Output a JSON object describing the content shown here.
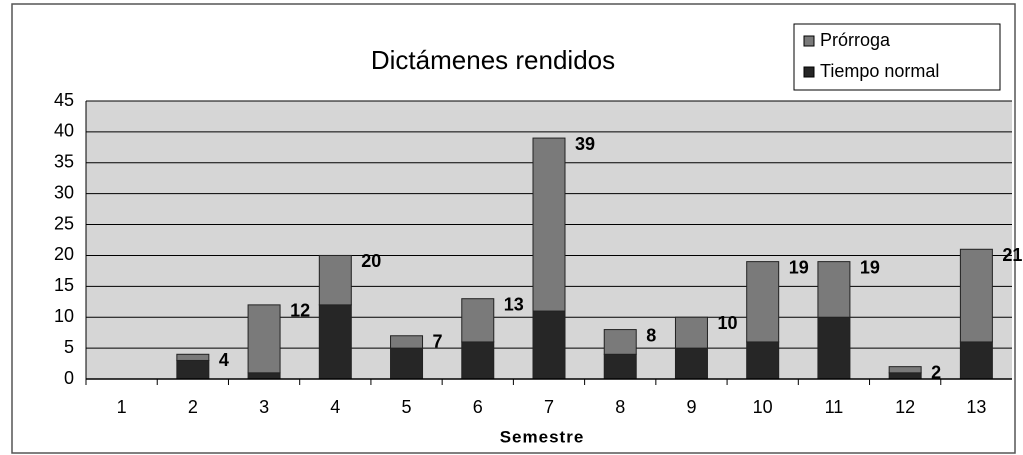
{
  "chart_data": {
    "type": "stacked_bar",
    "title": "Dictámenes rendidos",
    "xlabel": "Semestre",
    "categories": [
      "1",
      "2",
      "3",
      "4",
      "5",
      "6",
      "7",
      "8",
      "9",
      "10",
      "11",
      "12",
      "13"
    ],
    "series": [
      {
        "name": "Tiempo normal",
        "color": "#262626",
        "values": [
          0,
          3,
          1,
          12,
          5,
          6,
          11,
          4,
          5,
          6,
          10,
          1,
          6
        ]
      },
      {
        "name": "Prórroga",
        "color": "#7a7a7a",
        "values": [
          0,
          1,
          11,
          8,
          2,
          7,
          28,
          4,
          5,
          13,
          9,
          1,
          15
        ]
      }
    ],
    "totals": [
      null,
      4,
      12,
      20,
      7,
      13,
      39,
      8,
      10,
      19,
      19,
      2,
      21
    ],
    "ylim": [
      0,
      45
    ],
    "yticks": [
      0,
      5,
      10,
      15,
      20,
      25,
      30,
      35,
      40,
      45
    ],
    "grid": true,
    "legend": "top-right"
  }
}
